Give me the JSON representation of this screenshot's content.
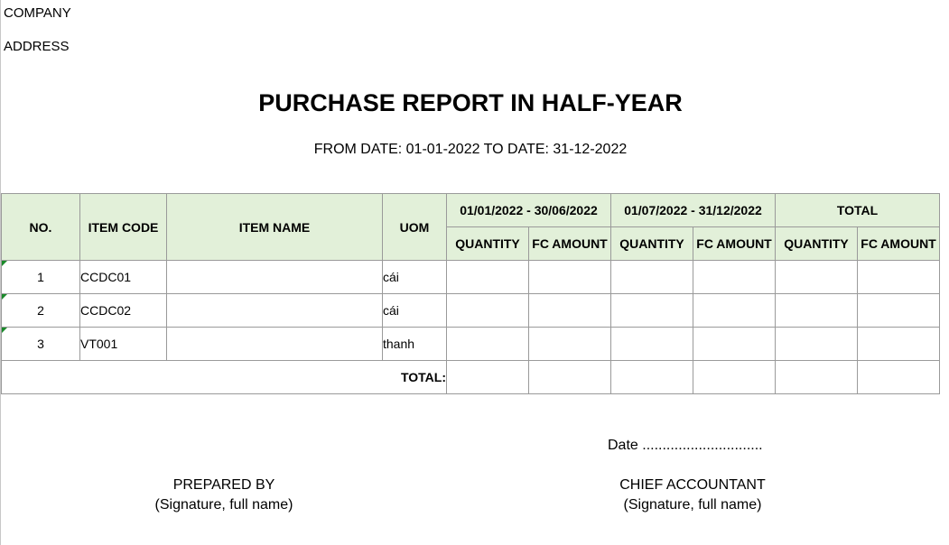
{
  "header": {
    "company": "COMPANY",
    "address": "ADDRESS",
    "title": "PURCHASE REPORT IN HALF-YEAR",
    "date_range": "FROM DATE: 01-01-2022 TO DATE: 31-12-2022"
  },
  "table": {
    "columns": {
      "no": "NO.",
      "item_code": "ITEM CODE",
      "item_name": "ITEM NAME",
      "uom": "UOM",
      "period1": "01/01/2022 - 30/06/2022",
      "period2": "01/07/2022 - 31/12/2022",
      "total": "TOTAL",
      "quantity": "QUANTITY",
      "fc_amount": "FC AMOUNT"
    },
    "rows": [
      {
        "no": "1",
        "item_code": "CCDC01",
        "item_name": "",
        "uom": "cái"
      },
      {
        "no": "2",
        "item_code": "CCDC02",
        "item_name": "",
        "uom": "cái"
      },
      {
        "no": "3",
        "item_code": "VT001",
        "item_name": "",
        "uom": "thanh"
      }
    ],
    "total_label": "TOTAL:"
  },
  "footer": {
    "date_line": "Date ..............................",
    "prepared_by": "PREPARED BY",
    "prepared_sig": "(Signature, full name)",
    "chief_accountant": "CHIEF ACCOUNTANT",
    "chief_sig": "(Signature, full name)"
  }
}
